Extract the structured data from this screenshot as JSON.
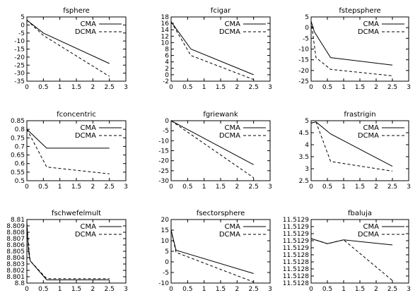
{
  "chart_data": [
    {
      "type": "line",
      "title": "fsphere",
      "xlim": [
        0,
        3
      ],
      "ylim": [
        -35,
        5
      ],
      "xticks": [
        "0",
        "0.5",
        "1",
        "1.5",
        "2",
        "2.5",
        "3"
      ],
      "yticks": [
        "5",
        "0",
        "-5",
        "-10",
        "-15",
        "-20",
        "-25",
        "-30",
        "-35"
      ],
      "legend_position": "top-right",
      "series": [
        {
          "name": "CMA",
          "style": "solid",
          "x": [
            0,
            0.5,
            2.5
          ],
          "y": [
            3,
            -5,
            -24
          ]
        },
        {
          "name": "DCMA",
          "style": "dashed",
          "x": [
            0,
            0.5,
            2.5
          ],
          "y": [
            3,
            -6.5,
            -32
          ]
        }
      ]
    },
    {
      "type": "line",
      "title": "fcigar",
      "xlim": [
        0,
        3
      ],
      "ylim": [
        -2,
        18
      ],
      "xticks": [
        "0",
        "0.5",
        "1",
        "1.5",
        "2",
        "2.5",
        "3"
      ],
      "yticks": [
        "18",
        "16",
        "14",
        "12",
        "10",
        "8",
        "6",
        "4",
        "2",
        "0",
        "-2"
      ],
      "legend_position": "top-right",
      "series": [
        {
          "name": "CMA",
          "style": "solid",
          "x": [
            0,
            0.6,
            2.5
          ],
          "y": [
            16.5,
            8,
            0
          ]
        },
        {
          "name": "DCMA",
          "style": "dashed",
          "x": [
            0,
            0.6,
            2.5
          ],
          "y": [
            16.5,
            6,
            -1.5
          ]
        }
      ]
    },
    {
      "type": "line",
      "title": "fstepsphere",
      "xlim": [
        0,
        3
      ],
      "ylim": [
        -25,
        5
      ],
      "xticks": [
        "0",
        "0.5",
        "1",
        "1.5",
        "2",
        "2.5",
        "3"
      ],
      "yticks": [
        "5",
        "0",
        "-5",
        "-10",
        "-15",
        "-20",
        "-25"
      ],
      "legend_position": "top-right",
      "series": [
        {
          "name": "CMA",
          "style": "solid",
          "x": [
            0,
            0.1,
            0.6,
            2.5
          ],
          "y": [
            3,
            -2,
            -14,
            -17.5
          ]
        },
        {
          "name": "DCMA",
          "style": "dashed",
          "x": [
            0,
            0.15,
            0.6,
            2.5
          ],
          "y": [
            3,
            -14,
            -19.5,
            -22.5
          ]
        }
      ]
    },
    {
      "type": "line",
      "title": "fconcentric",
      "xlim": [
        0,
        3
      ],
      "ylim": [
        0.5,
        0.85
      ],
      "xticks": [
        "0",
        "0.5",
        "1",
        "1.5",
        "2",
        "2.5",
        "3"
      ],
      "yticks": [
        "0.85",
        "0.8",
        "0.75",
        "0.7",
        "0.65",
        "0.6",
        "0.55",
        "0.5"
      ],
      "legend_position": "top-right",
      "series": [
        {
          "name": "CMA",
          "style": "solid",
          "x": [
            0,
            0.6,
            2.5
          ],
          "y": [
            0.8,
            0.69,
            0.69
          ]
        },
        {
          "name": "DCMA",
          "style": "dashed",
          "x": [
            0,
            0.6,
            2.5
          ],
          "y": [
            0.8,
            0.58,
            0.54
          ]
        }
      ]
    },
    {
      "type": "line",
      "title": "fgriewank",
      "xlim": [
        0,
        3
      ],
      "ylim": [
        -30,
        0
      ],
      "xticks": [
        "0",
        "0.5",
        "1",
        "1.5",
        "2",
        "2.5",
        "3"
      ],
      "yticks": [
        "0",
        "-5",
        "-10",
        "-15",
        "-20",
        "-25",
        "-30"
      ],
      "legend_position": "top-right",
      "series": [
        {
          "name": "CMA",
          "style": "solid",
          "x": [
            0,
            2.5
          ],
          "y": [
            0,
            -22
          ]
        },
        {
          "name": "DCMA",
          "style": "dashed",
          "x": [
            0,
            2.5
          ],
          "y": [
            0,
            -28.5
          ]
        }
      ]
    },
    {
      "type": "line",
      "title": "frastrigin",
      "xlim": [
        0,
        3
      ],
      "ylim": [
        2.5,
        5
      ],
      "xticks": [
        "0",
        "0.5",
        "1",
        "1.5",
        "2",
        "2.5",
        "3"
      ],
      "yticks": [
        "5",
        "4.5",
        "4",
        "3.5",
        "3",
        "2.5"
      ],
      "legend_position": "top-right",
      "series": [
        {
          "name": "CMA",
          "style": "solid",
          "x": [
            0,
            0.15,
            0.6,
            2.5
          ],
          "y": [
            4.9,
            4.95,
            4.45,
            3.1
          ]
        },
        {
          "name": "DCMA",
          "style": "dashed",
          "x": [
            0,
            0.15,
            0.6,
            2.5
          ],
          "y": [
            4.9,
            4.95,
            3.3,
            2.9
          ]
        }
      ]
    },
    {
      "type": "line",
      "title": "fschwefelmult",
      "xlim": [
        0,
        3
      ],
      "ylim": [
        8.8,
        8.81
      ],
      "xticks": [
        "0",
        "0.5",
        "1",
        "1.5",
        "2",
        "2.5",
        "3"
      ],
      "yticks": [
        "8.81",
        "8.809",
        "8.808",
        "8.807",
        "8.806",
        "8.805",
        "8.804",
        "8.803",
        "8.802",
        "8.801",
        "8.8"
      ],
      "legend_position": "top-right",
      "series": [
        {
          "name": "CMA",
          "style": "solid",
          "x": [
            0,
            0.05,
            0.1,
            0.6,
            2.5
          ],
          "y": [
            8.8095,
            8.805,
            8.8035,
            8.8005,
            8.8005
          ]
        },
        {
          "name": "DCMA",
          "style": "dashed",
          "x": [
            0,
            0.05,
            0.1,
            0.6,
            2.5
          ],
          "y": [
            8.8095,
            8.806,
            8.8035,
            8.8007,
            8.8007
          ]
        }
      ]
    },
    {
      "type": "line",
      "title": "fsectorsphere",
      "xlim": [
        0,
        3
      ],
      "ylim": [
        -10,
        20
      ],
      "xticks": [
        "0",
        "0.5",
        "1",
        "1.5",
        "2",
        "2.5",
        "3"
      ],
      "yticks": [
        "20",
        "15",
        "10",
        "5",
        "0",
        "-5",
        "-10"
      ],
      "legend_position": "top-right",
      "series": [
        {
          "name": "CMA",
          "style": "solid",
          "x": [
            0,
            0.15,
            2.5
          ],
          "y": [
            15,
            5.5,
            -5.5
          ]
        },
        {
          "name": "DCMA",
          "style": "dashed",
          "x": [
            0,
            0.15,
            2.5
          ],
          "y": [
            15,
            4.5,
            -9.5
          ]
        }
      ]
    },
    {
      "type": "line",
      "title": "fbaluja",
      "xlim": [
        0,
        3
      ],
      "ylim": [
        11.5128,
        11.5129
      ],
      "xticks": [
        "0",
        "0.5",
        "1",
        "1.5",
        "2",
        "2.5",
        "3"
      ],
      "yticks": [
        "11.5129",
        "11.5129",
        "11.5129",
        "11.5129",
        "11.5129",
        "11.5128",
        "11.5128",
        "11.5128",
        "11.5128",
        "11.5128"
      ],
      "legend_position": "top-right",
      "series": [
        {
          "name": "CMA",
          "style": "solid",
          "x": [
            0,
            0.5,
            1,
            2.5
          ],
          "y": [
            11.51287,
            11.512862,
            11.512868,
            11.51286
          ]
        },
        {
          "name": "DCMA",
          "style": "dashed",
          "x": [
            0,
            0.5,
            1,
            2.5
          ],
          "y": [
            11.51287,
            11.512862,
            11.512868,
            11.512804
          ]
        }
      ]
    }
  ]
}
